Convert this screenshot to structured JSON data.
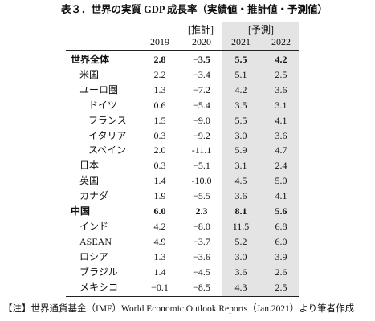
{
  "title": "表３．世界の実質 GDP 成長率（実績値・推計値・予測値）",
  "header": {
    "groups": [
      "[推計]",
      "[予測]"
    ],
    "years": [
      "2019",
      "2020",
      "2021",
      "2022"
    ]
  },
  "table": {
    "rows": [
      [
        "世界全体",
        "2.8",
        "−3.5",
        "5.5",
        "4.2"
      ],
      [
        "米国",
        "2.2",
        "−3.4",
        "5.1",
        "2.5"
      ],
      [
        "ユーロ圏",
        "1.3",
        "−7.2",
        "4.2",
        "3.6"
      ],
      [
        "ドイツ",
        "0.6",
        "−5.4",
        "3.5",
        "3.1"
      ],
      [
        "フランス",
        "1.5",
        "−9.0",
        "5.5",
        "4.1"
      ],
      [
        "イタリア",
        "0.3",
        "−9.2",
        "3.0",
        "3.6"
      ],
      [
        "スペイン",
        "2.0",
        "-11.1",
        "5.9",
        "4.7"
      ],
      [
        "日本",
        "0.3",
        "−5.1",
        "3.1",
        "2.4"
      ],
      [
        "英国",
        "1.4",
        "-10.0",
        "4.5",
        "5.0"
      ],
      [
        "カナダ",
        "1.9",
        "−5.5",
        "3.6",
        "4.1"
      ],
      [
        "中国",
        "6.0",
        "2.3",
        "8.1",
        "5.6"
      ],
      [
        "インド",
        "4.2",
        "−8.0",
        "11.5",
        "6.8"
      ],
      [
        "ASEAN",
        "4.9",
        "−3.7",
        "5.2",
        "6.0"
      ],
      [
        "ロシア",
        "1.3",
        "−3.6",
        "3.0",
        "3.9"
      ],
      [
        "ブラジル",
        "1.4",
        "−4.5",
        "3.6",
        "2.6"
      ],
      [
        "メキシコ",
        "−0.1",
        "−8.5",
        "4.3",
        "2.5"
      ]
    ]
  },
  "note": "【注】世界通貨基金（IMF）World Economic Outlook Reports（Jan.2021）より筆者作成"
}
